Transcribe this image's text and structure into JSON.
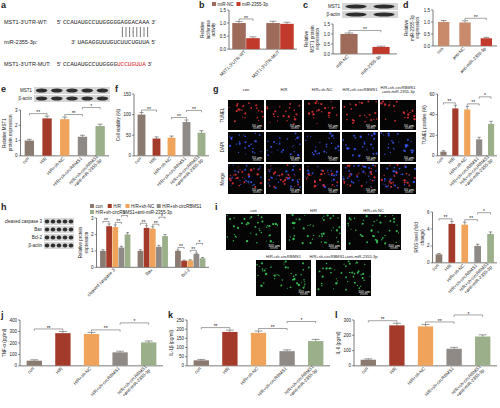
{
  "sequence_panel": {
    "panel": "a",
    "rows": [
      {
        "label": "MST1-3'UTR-WT:",
        "start": "5'",
        "seq": "CCAUAUGCCUUGGGGGAGGACAAA",
        "end": "3'"
      },
      {
        "label": "miR-2355-3p:",
        "start": "3'",
        "seq": "UAGAGGUUUGUCUUCUGUUA",
        "end": "5'"
      },
      {
        "label": "MST1-3'UTR-MUT:",
        "start": "5'",
        "seq": "CCAUAUGCCUUGGGG",
        "mut": "UCCUGUUA",
        "end": "3'"
      }
    ]
  },
  "image_panels": [
    {
      "columns": [
        "con",
        "H/R",
        "H/R+sh-NC",
        "H/R+sh-circRBMS1",
        "H/R+sh-circRBMS1+anti-miR-2355-3p"
      ],
      "rows": [
        {
          "label": "TUNEL",
          "colors": [
            "#e8333a"
          ]
        },
        {
          "label": "DAPI",
          "colors": [
            "#3b5bff"
          ]
        },
        {
          "label": "Merge",
          "colors": [
            "#3b5bff",
            "#e8333a"
          ]
        }
      ],
      "scale_bar": "50 μm"
    },
    {
      "images": [
        "con",
        "H/R",
        "H/R+sh-NC",
        "H/R+sh-circRBMS1",
        "H/R+sh-circRBMS1+anti-miR-2355-3p"
      ],
      "colors": [
        "#3ad15a"
      ],
      "scale_bar": "100 μm"
    }
  ],
  "chart_data": [
    {
      "type": "bar",
      "panel": "b",
      "y_label": "Relative luciferase activity",
      "categories": [
        "MST1-3'UTR-WT",
        "MST1-3'UTR-MUT"
      ],
      "series": [
        {
          "name": "miR-NC",
          "color": "#9e6b5a",
          "values": [
            1.0,
            1.0
          ],
          "errors": [
            0.06,
            0.07
          ]
        },
        {
          "name": "miR-2355-3p",
          "color": "#c0392b",
          "values": [
            0.42,
            0.97
          ],
          "errors": [
            0.05,
            0.06
          ]
        }
      ],
      "ylim": [
        0,
        1.5
      ],
      "yticks": [
        {
          "value": 0,
          "label": "0.0"
        },
        {
          "value": 0.5,
          "label": "0.5"
        },
        {
          "value": 1,
          "label": "1.0"
        },
        {
          "value": 1.5,
          "label": "1.5"
        }
      ],
      "legend": "top",
      "annotations": [
        {
          "group": 0,
          "pair": [
            0,
            1
          ],
          "label": "**"
        }
      ]
    },
    {
      "type": "bar",
      "panel": "c",
      "y_label": "Relative MST1 protein expression",
      "blot": [
        "MST1",
        "β-actin"
      ],
      "categories": [
        "miR-NC",
        "miR-2355-3p"
      ],
      "series": [
        {
          "colors": [
            "#9e6b5a",
            "#c0392b"
          ],
          "values": [
            1.0,
            0.35
          ],
          "errors": [
            0.05,
            0.04
          ]
        }
      ],
      "ylim": [
        0,
        1.5
      ],
      "yticks": [
        {
          "value": 0,
          "label": "0.0"
        },
        {
          "value": 0.5,
          "label": "0.5"
        },
        {
          "value": 1,
          "label": "1.0"
        },
        {
          "value": 1.5,
          "label": "1.5"
        }
      ],
      "annotations": [
        {
          "pair": [
            0,
            1
          ],
          "label": "**"
        }
      ]
    },
    {
      "type": "bar",
      "panel": "d",
      "y_label": "Relative miR-2355-3p expression",
      "categories": [
        "con",
        "anti-NC",
        "anti-miR-2355-3p"
      ],
      "series": [
        {
          "colors": [
            "#c98a6b",
            "#c98a6b",
            "#c0392b"
          ],
          "values": [
            1.0,
            0.98,
            0.32
          ],
          "errors": [
            0.06,
            0.07,
            0.04
          ]
        }
      ],
      "ylim": [
        0,
        1.5
      ],
      "yticks": [
        {
          "value": 0,
          "label": "0.0"
        },
        {
          "value": 0.5,
          "label": "0.5"
        },
        {
          "value": 1,
          "label": "1.0"
        },
        {
          "value": 1.5,
          "label": "1.5"
        }
      ],
      "annotations": [
        {
          "pair": [
            1,
            2
          ],
          "label": "**"
        }
      ]
    },
    {
      "type": "bar",
      "panel": "e",
      "y_label": "Relative MST1 protein expression",
      "blot": [
        "MST1",
        "β-actin"
      ],
      "categories": [
        "con",
        "H/R",
        "H/R+sh-NC",
        "H/R+sh-circRBMS1",
        "H/R+sh-circRBMS1+anti-miR-2355-3p"
      ],
      "series": [
        {
          "colors": [
            "#8a7a70",
            "#a33a2a",
            "#f0a35a",
            "#8f8a86",
            "#9bb08a"
          ],
          "values": [
            1.0,
            2.45,
            2.4,
            1.25,
            1.95
          ],
          "errors": [
            0.08,
            0.15,
            0.14,
            0.1,
            0.12
          ]
        }
      ],
      "ylim": [
        0,
        3
      ],
      "yticks": [
        0,
        1,
        2,
        3
      ],
      "annotations": [
        {
          "pair": [
            0,
            1
          ],
          "label": "**"
        },
        {
          "pair": [
            2,
            3
          ],
          "label": "**"
        },
        {
          "pair": [
            3,
            4
          ],
          "label": "*"
        }
      ]
    },
    {
      "type": "bar",
      "panel": "f",
      "y_label": "Cell viability (%)",
      "categories": [
        "con",
        "H/R",
        "H/R+sh-NC",
        "H/R+sh-circRBMS1",
        "H/R+sh-circRBMS1+anti-miR-2355-3p"
      ],
      "series": [
        {
          "colors": [
            "#8a7a70",
            "#a33a2a",
            "#f0a35a",
            "#8f8a86",
            "#9bb08a"
          ],
          "values": [
            100,
            42,
            44,
            82,
            56
          ],
          "errors": [
            5,
            4,
            4,
            5,
            5
          ]
        }
      ],
      "ylim": [
        0,
        150
      ],
      "yticks": [
        0,
        50,
        100,
        150
      ],
      "annotations": [
        {
          "pair": [
            0,
            1
          ],
          "label": "**"
        },
        {
          "pair": [
            2,
            3
          ],
          "label": "**"
        },
        {
          "pair": [
            3,
            4
          ],
          "label": "**"
        }
      ]
    },
    {
      "type": "bar",
      "panel": "g",
      "y_label": "TUNEL positive (%)",
      "categories": [
        "con",
        "H/R",
        "H/R+sh-NC",
        "H/R+sh-circRBMS1",
        "H/R+sh-circRBMS1+anti-miR-2355-3p"
      ],
      "series": [
        {
          "colors": [
            "#8a7a70",
            "#a33a2a",
            "#f0a35a",
            "#8f8a86",
            "#9bb08a"
          ],
          "values": [
            4,
            46,
            45,
            16,
            31
          ],
          "errors": [
            1,
            3,
            3,
            2,
            2.5
          ]
        }
      ],
      "ylim": [
        0,
        60
      ],
      "yticks": [
        0,
        20,
        40,
        60
      ],
      "annotations": [
        {
          "pair": [
            0,
            1
          ],
          "label": "**"
        },
        {
          "pair": [
            2,
            3
          ],
          "label": "**"
        },
        {
          "pair": [
            3,
            4
          ],
          "label": "*"
        }
      ]
    },
    {
      "type": "bar",
      "panel": "h",
      "y_label": "Relative protein expression",
      "blot": [
        "cleaved caspase 3",
        "Bax",
        "Bcl-2",
        "β-actin"
      ],
      "categories": [
        "cleaved caspase 3",
        "Bax",
        "Bcl-2"
      ],
      "series": [
        {
          "name": "con",
          "color": "#8a7a70",
          "values": [
            1.0,
            1.0,
            1.0
          ],
          "errors": [
            0.07,
            0.07,
            0.06
          ]
        },
        {
          "name": "H/R",
          "color": "#a33a2a",
          "values": [
            2.5,
            2.4,
            0.4
          ],
          "errors": [
            0.14,
            0.13,
            0.04
          ]
        },
        {
          "name": "H/R+sh-NC",
          "color": "#f0a35a",
          "values": [
            2.45,
            2.35,
            0.42
          ],
          "errors": [
            0.13,
            0.12,
            0.04
          ]
        },
        {
          "name": "H/R+sh-circRBMS1",
          "color": "#8f8a86",
          "values": [
            1.2,
            1.25,
            0.82
          ],
          "errors": [
            0.08,
            0.09,
            0.06
          ]
        },
        {
          "name": "H/R+sh-circRBMS1+anti-miR-2355-3p",
          "color": "#9bb08a",
          "values": [
            2.0,
            1.9,
            0.55
          ],
          "errors": [
            0.11,
            0.1,
            0.05
          ]
        }
      ],
      "ylim": [
        0,
        3
      ],
      "yticks": [
        0,
        1,
        2,
        3
      ],
      "legend": "top",
      "annotations": [
        {
          "group": 0,
          "pair": [
            0,
            1
          ],
          "label": "**"
        },
        {
          "group": 0,
          "pair": [
            2,
            3
          ],
          "label": "**"
        },
        {
          "group": 0,
          "pair": [
            3,
            4
          ],
          "label": "*"
        },
        {
          "group": 1,
          "pair": [
            0,
            1
          ],
          "label": "**"
        },
        {
          "group": 1,
          "pair": [
            2,
            3
          ],
          "label": "**"
        },
        {
          "group": 1,
          "pair": [
            3,
            4
          ],
          "label": "*"
        },
        {
          "group": 2,
          "pair": [
            0,
            1
          ],
          "label": "**"
        },
        {
          "group": 2,
          "pair": [
            2,
            3
          ],
          "label": "**"
        },
        {
          "group": 2,
          "pair": [
            3,
            4
          ],
          "label": "*"
        }
      ]
    },
    {
      "type": "bar",
      "panel": "i",
      "y_label": "ROS level (fold change)",
      "categories": [
        "con",
        "H/R",
        "H/R+sh-NC",
        "H/R+sh-circRBMS1",
        "H/R+sh-circRBMS1+anti-miR-2355-3p"
      ],
      "series": [
        {
          "colors": [
            "#8a7a70",
            "#a33a2a",
            "#f0a35a",
            "#8f8a86",
            "#9bb08a"
          ],
          "values": [
            1.0,
            4.6,
            4.5,
            2.0,
            3.4
          ],
          "errors": [
            0.1,
            0.3,
            0.3,
            0.2,
            0.25
          ]
        }
      ],
      "ylim": [
        0,
        6
      ],
      "yticks": [
        0,
        2,
        4,
        6
      ],
      "annotations": [
        {
          "pair": [
            0,
            1
          ],
          "label": "**"
        },
        {
          "pair": [
            2,
            3
          ],
          "label": "**"
        },
        {
          "pair": [
            3,
            4
          ],
          "label": "*"
        }
      ]
    },
    {
      "type": "bar",
      "panel": "j",
      "y_label": "TNF-α (pg/ml)",
      "categories": [
        "con",
        "H/R",
        "H/R+sh-NC",
        "H/R+sh-circRBMS1",
        "H/R+sh-circRBMS1+anti-miR-2355-3p"
      ],
      "series": [
        {
          "colors": [
            "#8a7a70",
            "#a33a2a",
            "#f0a35a",
            "#8f8a86",
            "#9bb08a"
          ],
          "values": [
            45,
            285,
            278,
            118,
            205
          ],
          "errors": [
            8,
            15,
            14,
            10,
            12
          ]
        }
      ],
      "ylim": [
        0,
        400
      ],
      "yticks": [
        0,
        100,
        200,
        300,
        400
      ],
      "annotations": [
        {
          "pair": [
            0,
            1
          ],
          "label": "**"
        },
        {
          "pair": [
            2,
            3
          ],
          "label": "**"
        },
        {
          "pair": [
            3,
            4
          ],
          "label": "*"
        }
      ]
    },
    {
      "type": "bar",
      "panel": "k",
      "y_label": "IL-1β (pg/ml)",
      "categories": [
        "con",
        "H/R",
        "H/R+sh-NC",
        "H/R+sh-circRBMS1",
        "H/R+sh-circRBMS1+anti-miR-2355-3p"
      ],
      "series": [
        {
          "colors": [
            "#8a7a70",
            "#a33a2a",
            "#f0a35a",
            "#8f8a86",
            "#9bb08a"
          ],
          "values": [
            30,
            185,
            180,
            80,
            135
          ],
          "errors": [
            5,
            10,
            10,
            7,
            9
          ]
        }
      ],
      "ylim": [
        0,
        250
      ],
      "yticks": [
        0,
        50,
        100,
        150,
        200,
        250
      ],
      "annotations": [
        {
          "pair": [
            0,
            1
          ],
          "label": "**"
        },
        {
          "pair": [
            2,
            3
          ],
          "label": "**"
        },
        {
          "pair": [
            3,
            4
          ],
          "label": "*"
        }
      ]
    },
    {
      "type": "bar",
      "panel": "l",
      "y_label": "IL-6 (pg/ml)",
      "categories": [
        "con",
        "H/R",
        "H/R+sh-NC",
        "H/R+sh-circRBMS1",
        "H/R+sh-circRBMS1+anti-miR-2355-3p"
      ],
      "series": [
        {
          "colors": [
            "#8a7a70",
            "#a33a2a",
            "#f0a35a",
            "#8f8a86",
            "#9bb08a"
          ],
          "values": [
            40,
            265,
            258,
            112,
            192
          ],
          "errors": [
            6,
            14,
            13,
            9,
            11
          ]
        }
      ],
      "ylim": [
        0,
        300
      ],
      "yticks": [
        0,
        100,
        200,
        300
      ],
      "annotations": [
        {
          "pair": [
            0,
            1
          ],
          "label": "**"
        },
        {
          "pair": [
            2,
            3
          ],
          "label": "**"
        },
        {
          "pair": [
            3,
            4
          ],
          "label": "*"
        }
      ]
    }
  ]
}
